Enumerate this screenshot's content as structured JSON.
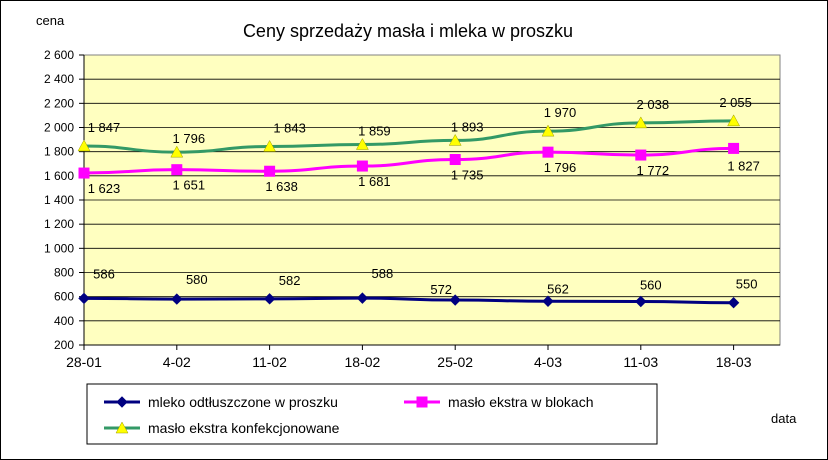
{
  "chart_data": {
    "type": "line",
    "title": "Ceny sprzedaży masła i mleka w proszku",
    "ylabel": "cena",
    "xlabel": "data",
    "categories": [
      "28-01",
      "4-02",
      "11-02",
      "18-02",
      "25-02",
      "4-03",
      "11-03",
      "18-03"
    ],
    "ylim": [
      200,
      2600
    ],
    "ytick_step": 200,
    "yticks": [
      "200",
      "400",
      "600",
      "800",
      "1 000",
      "1 200",
      "1 400",
      "1 600",
      "1 800",
      "2 000",
      "2 200",
      "2 400",
      "2 600"
    ],
    "plot_background": "#FFFFC0",
    "grid": true,
    "legend_position": "bottom",
    "series": [
      {
        "name": "mleko odtłuszczone w proszku",
        "color": "#000080",
        "marker": "diamond",
        "values": [
          586,
          580,
          582,
          588,
          572,
          562,
          560,
          550
        ],
        "labels": [
          "586",
          "580",
          "582",
          "588",
          "572",
          "562",
          "560",
          "550"
        ]
      },
      {
        "name": "masło ekstra w blokach",
        "color": "#FF00FF",
        "marker": "square",
        "values": [
          1623,
          1651,
          1638,
          1681,
          1735,
          1796,
          1772,
          1827
        ],
        "labels": [
          "1 623",
          "1 651",
          "1 638",
          "1 681",
          "1 735",
          "1 796",
          "1 772",
          "1 827"
        ]
      },
      {
        "name": "masło ekstra konfekcjonowane",
        "color": "#339966",
        "marker": "triangle",
        "marker_color": "#FFFF00",
        "values": [
          1847,
          1796,
          1843,
          1859,
          1893,
          1970,
          2038,
          2055
        ],
        "labels": [
          "1 847",
          "1 796",
          "1 843",
          "1 859",
          "1 893",
          "1 970",
          "2 038",
          "2 055"
        ]
      }
    ]
  }
}
